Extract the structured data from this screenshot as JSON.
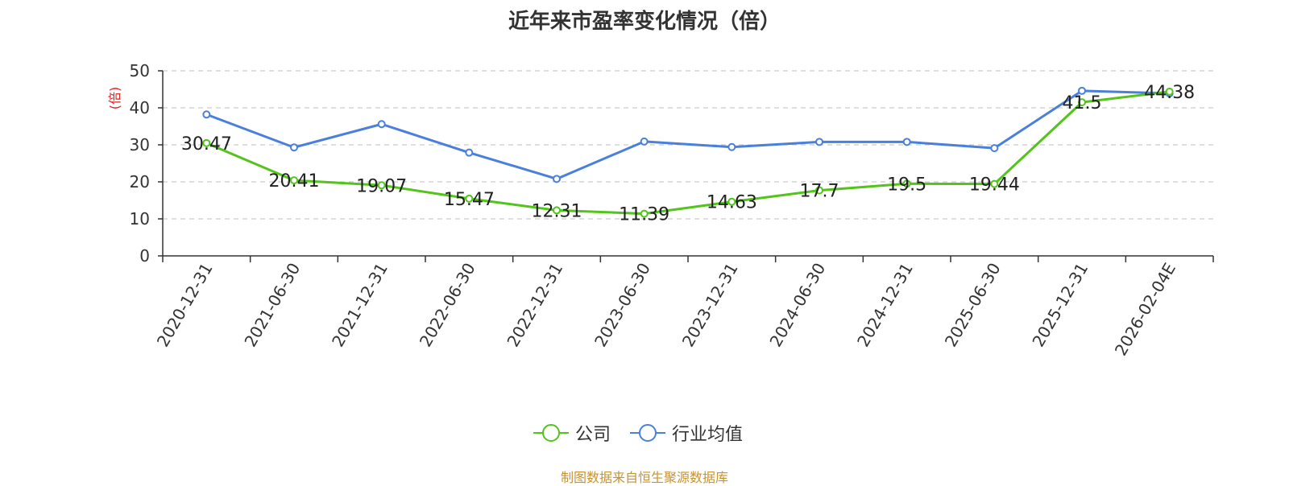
{
  "chart_data": {
    "type": "line",
    "title": "近年来市盈率变化情况（倍）",
    "ylabel": "(倍)",
    "ylim": [
      0,
      50
    ],
    "yticks": [
      0,
      10,
      20,
      30,
      40,
      50
    ],
    "grid": true,
    "legend_position": "bottom",
    "categories": [
      "2020-12-31",
      "2021-06-30",
      "2021-12-31",
      "2022-06-30",
      "2022-12-31",
      "2023-06-30",
      "2023-12-31",
      "2024-06-30",
      "2024-12-31",
      "2025-06-30",
      "2025-12-31",
      "2026-02-04E"
    ],
    "series": [
      {
        "name": "公司",
        "color": "#52c41a",
        "values": [
          30.47,
          20.41,
          19.07,
          15.47,
          12.31,
          11.39,
          14.63,
          17.7,
          19.5,
          19.44,
          41.5,
          44.38
        ],
        "labels": [
          "30.47",
          "20.41",
          "19.07",
          "15.47",
          "12.31",
          "11.39",
          "14.63",
          "17.7",
          "19.5",
          "19.44",
          "41.5",
          "44.38"
        ]
      },
      {
        "name": "行业均值",
        "color": "#4a7fdb",
        "values": [
          38.2,
          29.3,
          35.6,
          27.9,
          20.8,
          30.9,
          29.4,
          30.8,
          30.8,
          29.1,
          44.6,
          43.9
        ]
      }
    ]
  },
  "footer": {
    "source": "制图数据来自恒生聚源数据库"
  }
}
